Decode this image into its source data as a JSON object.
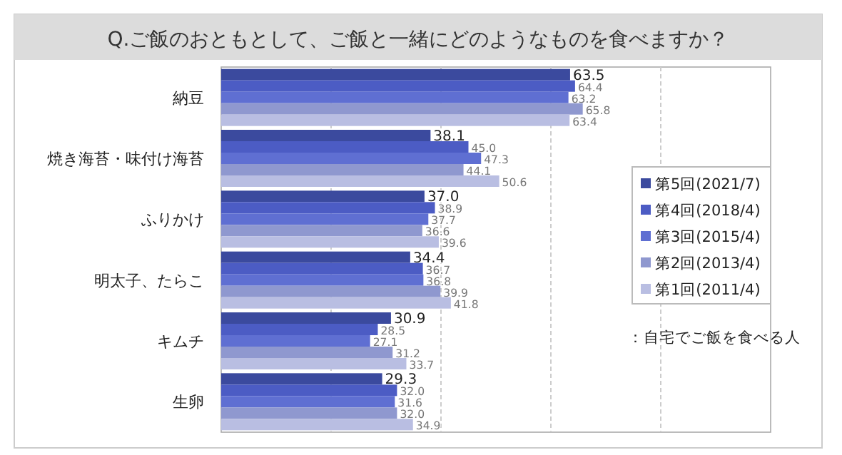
{
  "chart_data": {
    "type": "bar",
    "orientation": "horizontal",
    "title": "Q.ご飯のおともとして、ご飯と一緒にどのようなものを食べますか？",
    "categories": [
      "納豆",
      "焼き海苔・味付け海苔",
      "ふりかけ",
      "明太子、たらこ",
      "キムチ",
      "生卵"
    ],
    "series": [
      {
        "name": "第5回(2021/7)",
        "color": "#3b4a9e",
        "values": [
          63.5,
          38.1,
          37.0,
          34.4,
          30.9,
          29.3
        ],
        "value_labels": [
          "63.5",
          "38.1",
          "37.0",
          "34.4",
          "30.9",
          "29.3"
        ]
      },
      {
        "name": "第4回(2018/4)",
        "color": "#4c5cc4",
        "values": [
          64.4,
          45.0,
          38.9,
          36.7,
          28.5,
          32.0
        ],
        "value_labels": [
          "64.4",
          "45.0",
          "38.9",
          "36.7",
          "28.5",
          "32.0"
        ]
      },
      {
        "name": "第3回(2015/4)",
        "color": "#5f6fd2",
        "values": [
          63.2,
          47.3,
          37.7,
          36.8,
          27.1,
          31.6
        ],
        "value_labels": [
          "63.2",
          "47.3",
          "37.7",
          "36.8",
          "27.1",
          "31.6"
        ]
      },
      {
        "name": "第2回(2013/4)",
        "color": "#8f98cf",
        "values": [
          65.8,
          44.1,
          36.6,
          39.9,
          31.2,
          32.0
        ],
        "value_labels": [
          "65.8",
          "44.1",
          "36.6",
          "39.9",
          "31.2",
          "32.0"
        ]
      },
      {
        "name": "第1回(2011/4)",
        "color": "#b9bee2",
        "values": [
          63.4,
          50.6,
          39.6,
          41.8,
          33.7,
          34.9
        ],
        "value_labels": [
          "63.4",
          "50.6",
          "39.6",
          "41.8",
          "33.7",
          "34.9"
        ]
      }
    ],
    "xlim": [
      0,
      100
    ],
    "xticks": [
      {
        "value": 20,
        "label": null
      },
      {
        "value": 40,
        "label": null
      },
      {
        "value": 60,
        "label": null
      },
      {
        "value": 80,
        "label": null
      }
    ],
    "grid": "x",
    "tick_labels": "y",
    "legend": "right",
    "annotations": [
      "：自宅でご飯を食べる人"
    ]
  }
}
